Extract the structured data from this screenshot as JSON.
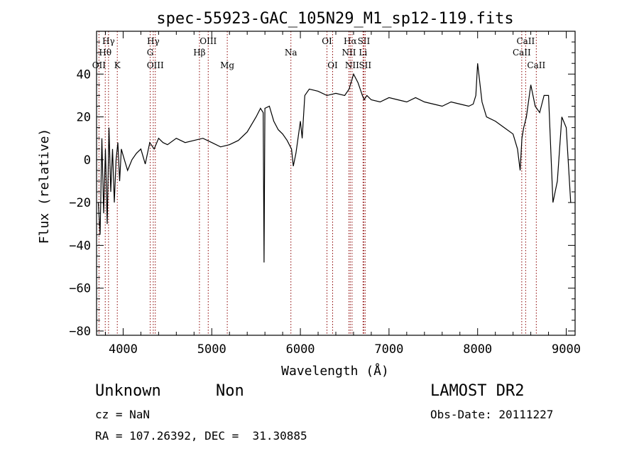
{
  "chart_data": {
    "type": "line",
    "title": "spec-55923-GAC_105N29_M1_sp12-119.fits",
    "xlabel": "Wavelength (Å)",
    "ylabel": "Flux (relative)",
    "xlim": [
      3700,
      9100
    ],
    "ylim": [
      -82,
      60
    ],
    "xticks": [
      4000,
      5000,
      6000,
      7000,
      8000,
      9000
    ],
    "xtick_labels": [
      "4000",
      "5000",
      "6000",
      "7000",
      "8000",
      "9000"
    ],
    "yticks": [
      -80,
      -60,
      -40,
      -20,
      0,
      20,
      40
    ],
    "ytick_labels": [
      "−80",
      "−60",
      "−40",
      "−20",
      "0",
      "20",
      "40"
    ],
    "line_color": "#000000",
    "marker_color": "#8b0000",
    "series": [
      {
        "x": [
          3720,
          3740,
          3760,
          3780,
          3800,
          3820,
          3840,
          3860,
          3880,
          3900,
          3920,
          3940,
          3960,
          3980,
          4000,
          4050,
          4100,
          4150,
          4200,
          4250,
          4300,
          4350,
          4400,
          4450,
          4500,
          4600,
          4700,
          4800,
          4900,
          5000,
          5100,
          5200,
          5300,
          5400,
          5500,
          5550,
          5580,
          5590,
          5600,
          5650,
          5700,
          5750,
          5800,
          5850,
          5900,
          5920,
          5950,
          6000,
          6020,
          6050,
          6100,
          6200,
          6300,
          6400,
          6500,
          6550,
          6600,
          6650,
          6700,
          6720,
          6750,
          6800,
          6900,
          7000,
          7100,
          7200,
          7300,
          7400,
          7500,
          7600,
          7700,
          7800,
          7900,
          7950,
          7980,
          8000,
          8050,
          8100,
          8200,
          8300,
          8400,
          8450,
          8480,
          8500,
          8520,
          8550,
          8600,
          8650,
          8700,
          8750,
          8800,
          8850,
          8900,
          8950,
          9000,
          9050
        ],
        "y": [
          -20,
          -35,
          10,
          -25,
          5,
          -30,
          15,
          -15,
          5,
          -20,
          0,
          8,
          -10,
          5,
          2,
          -5,
          0,
          3,
          5,
          -2,
          8,
          5,
          10,
          8,
          7,
          10,
          8,
          9,
          10,
          8,
          6,
          7,
          9,
          13,
          20,
          24,
          22,
          -48,
          24,
          25,
          18,
          14,
          12,
          9,
          5,
          -3,
          3,
          18,
          10,
          30,
          33,
          32,
          30,
          31,
          30,
          33,
          40,
          36,
          30,
          28,
          30,
          28,
          27,
          29,
          28,
          27,
          29,
          27,
          26,
          25,
          27,
          26,
          25,
          26,
          30,
          45,
          27,
          20,
          18,
          15,
          12,
          5,
          -5,
          10,
          15,
          20,
          35,
          25,
          22,
          30,
          30,
          -20,
          -10,
          20,
          15,
          -20
        ],
        "style": "solid"
      }
    ],
    "line_markers": [
      {
        "label": "Hγ",
        "x": 3835,
        "tier": 0
      },
      {
        "label": "Hθ",
        "x": 3798,
        "tier": 1
      },
      {
        "label": "OII",
        "x": 3727,
        "tier": 2
      },
      {
        "label": "K",
        "x": 3934,
        "tier": 2
      },
      {
        "label": "Hγ",
        "x": 4340,
        "tier": 0
      },
      {
        "label": "G",
        "x": 4305,
        "tier": 1
      },
      {
        "label": "OIII",
        "x": 4363,
        "tier": 2
      },
      {
        "label": "OIII",
        "x": 4960,
        "tier": 0
      },
      {
        "label": "Hβ",
        "x": 4861,
        "tier": 1
      },
      {
        "label": "Mg",
        "x": 5175,
        "tier": 2
      },
      {
        "label": "Na",
        "x": 5893,
        "tier": 1
      },
      {
        "label": "OI",
        "x": 6300,
        "tier": 0
      },
      {
        "label": "OI",
        "x": 6364,
        "tier": 2
      },
      {
        "label": "Hα",
        "x": 6563,
        "tier": 0
      },
      {
        "label": "SII",
        "x": 6716,
        "tier": 0
      },
      {
        "label": "NII",
        "x": 6548,
        "tier": 1
      },
      {
        "label": "Li",
        "x": 6707,
        "tier": 1
      },
      {
        "label": "NII",
        "x": 6583,
        "tier": 2
      },
      {
        "label": "SII",
        "x": 6731,
        "tier": 2
      },
      {
        "label": "CaII",
        "x": 8542,
        "tier": 0
      },
      {
        "label": "CaII",
        "x": 8498,
        "tier": 1
      },
      {
        "label": "CaII",
        "x": 8662,
        "tier": 2
      }
    ]
  },
  "info": {
    "class_label": "Unknown",
    "subclass_label": "Non",
    "survey": "LAMOST DR2",
    "cz": "cz = NaN",
    "obs_date": "Obs-Date: 20111227",
    "coords": "RA = 107.26392, DEC =  31.30885"
  }
}
